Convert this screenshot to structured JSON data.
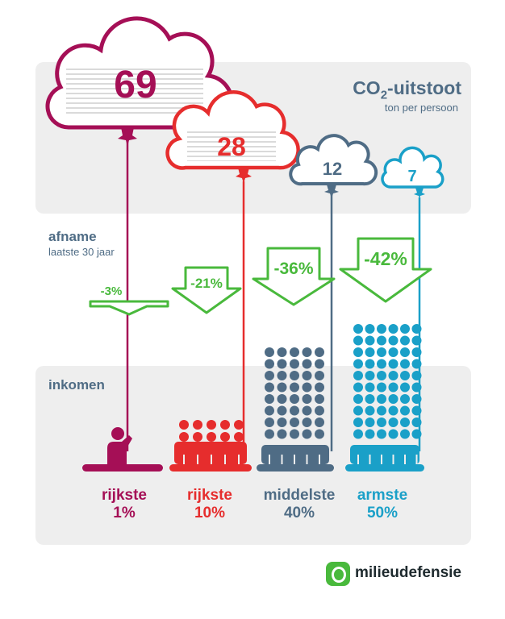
{
  "title": {
    "main_prefix": "CO",
    "main_subscript": "2",
    "main_suffix": "-uitstoot",
    "subtitle": "ton per persoon"
  },
  "afname": {
    "label": "afname",
    "sublabel": "laatste 30 jaar"
  },
  "inkomen": {
    "label": "inkomen"
  },
  "brand": {
    "name": "milieudefensie",
    "color": "#49b93c"
  },
  "colors": {
    "group1": "#a50f56",
    "group2": "#e62d2d",
    "group3": "#4f6c85",
    "group4": "#1aa0c8",
    "decrease": "#49b93c"
  },
  "chart_data": {
    "type": "diagram",
    "groups": [
      {
        "line1": "rijkste",
        "line2": "1%",
        "emission": "69",
        "decrease": "-3%",
        "color": "#a50f56",
        "people": 1
      },
      {
        "line1": "rijkste",
        "line2": "10%",
        "emission": "28",
        "decrease": "-21%",
        "color": "#e62d2d",
        "people": 10
      },
      {
        "line1": "middelste",
        "line2": "40%",
        "emission": "12",
        "decrease": "-36%",
        "color": "#4f6c85",
        "people": 40
      },
      {
        "line1": "armste",
        "line2": "50%",
        "emission": "7",
        "decrease": "-42%",
        "color": "#1aa0c8",
        "people": 50
      }
    ]
  }
}
